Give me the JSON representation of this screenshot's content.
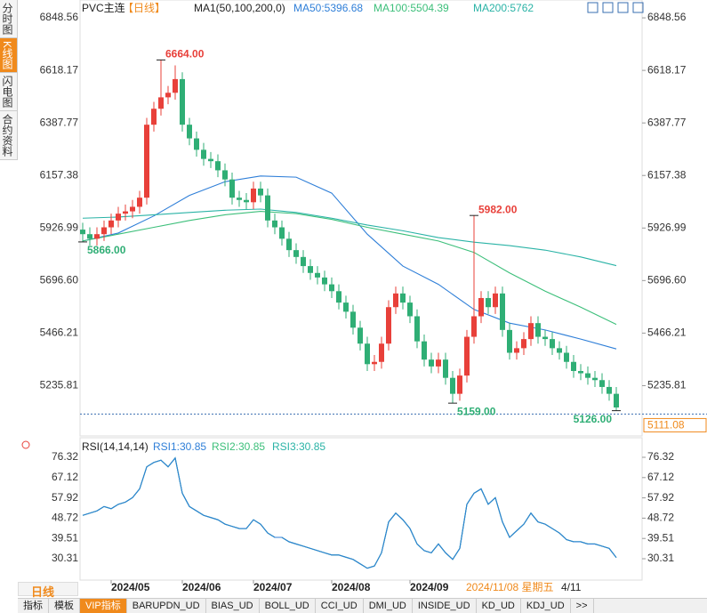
{
  "sidebar_tabs": [
    "分时图",
    "K线图",
    "闪电图",
    "合约资料"
  ],
  "chart_data": [
    {
      "type": "candlestick",
      "title": "PVC主连",
      "period": "【日线】",
      "indicator": "MA1(50,100,200,0)",
      "up_color": "#e8403a",
      "down_color": "#2fae75",
      "open": [
        5920,
        5900,
        5880,
        5900,
        5930,
        5960,
        5990,
        6000,
        6020,
        6060,
        6380,
        6450,
        6500,
        6520,
        6580,
        6380,
        6320,
        6270,
        6230,
        6220,
        6180,
        6140,
        6060,
        6050,
        6040,
        6100,
        6070,
        5960,
        5930,
        5880,
        5830,
        5800,
        5760,
        5730,
        5710,
        5680,
        5650,
        5600,
        5560,
        5490,
        5420,
        5330,
        5340,
        5420,
        5580,
        5640,
        5600,
        5540,
        5430,
        5350,
        5320,
        5350,
        5270,
        5200,
        5280,
        5450,
        5540,
        5620,
        5580,
        5640,
        5480,
        5380,
        5400,
        5440,
        5510,
        5450,
        5440,
        5400,
        5380,
        5340,
        5300,
        5290,
        5270,
        5260,
        5230,
        5200
      ],
      "high": [
        5950,
        5930,
        5930,
        5960,
        5990,
        6020,
        6030,
        6050,
        6090,
        6410,
        6480,
        6664,
        6550,
        6640,
        6610,
        6410,
        6350,
        6300,
        6260,
        6250,
        6210,
        6170,
        6090,
        6080,
        6130,
        6130,
        6100,
        5990,
        5960,
        5910,
        5860,
        5830,
        5790,
        5760,
        5740,
        5710,
        5680,
        5630,
        5590,
        5520,
        5450,
        5370,
        5450,
        5610,
        5670,
        5670,
        5630,
        5570,
        5460,
        5380,
        5380,
        5380,
        5300,
        5310,
        5480,
        5982,
        5650,
        5650,
        5670,
        5670,
        5510,
        5430,
        5470,
        5540,
        5540,
        5480,
        5470,
        5430,
        5410,
        5370,
        5330,
        5320,
        5300,
        5290,
        5260,
        5230
      ],
      "low": [
        5866,
        5850,
        5850,
        5870,
        5900,
        5930,
        5960,
        5970,
        5990,
        6030,
        6350,
        6420,
        6470,
        6490,
        6350,
        6290,
        6240,
        6200,
        6190,
        6150,
        6110,
        6030,
        6020,
        6010,
        6010,
        6040,
        5930,
        5900,
        5850,
        5800,
        5770,
        5730,
        5700,
        5680,
        5650,
        5620,
        5570,
        5530,
        5460,
        5390,
        5300,
        5300,
        5310,
        5390,
        5550,
        5570,
        5510,
        5400,
        5320,
        5290,
        5290,
        5240,
        5159,
        5170,
        5250,
        5420,
        5510,
        5550,
        5550,
        5450,
        5350,
        5350,
        5370,
        5410,
        5420,
        5410,
        5370,
        5350,
        5310,
        5270,
        5260,
        5240,
        5230,
        5200,
        5170,
        5126
      ],
      "close": [
        5900,
        5880,
        5900,
        5930,
        5960,
        5990,
        6000,
        6020,
        6060,
        6380,
        6450,
        6500,
        6520,
        6580,
        6380,
        6320,
        6270,
        6230,
        6220,
        6180,
        6140,
        6060,
        6050,
        6040,
        6100,
        6070,
        5960,
        5930,
        5880,
        5830,
        5800,
        5760,
        5730,
        5710,
        5680,
        5650,
        5600,
        5560,
        5490,
        5420,
        5330,
        5340,
        5420,
        5580,
        5640,
        5600,
        5540,
        5430,
        5350,
        5320,
        5350,
        5270,
        5200,
        5280,
        5450,
        5540,
        5620,
        5580,
        5640,
        5480,
        5380,
        5400,
        5440,
        5510,
        5450,
        5440,
        5400,
        5380,
        5340,
        5300,
        5290,
        5270,
        5260,
        5230,
        5200,
        5140
      ],
      "series": [
        {
          "name": "MA50:5396.68",
          "color": "#2f7fd8",
          "x": [
            0,
            5,
            10,
            15,
            20,
            25,
            30,
            35,
            40,
            45,
            50,
            55,
            60,
            65,
            70,
            75
          ],
          "values": [
            5870,
            5905,
            5980,
            6070,
            6130,
            6155,
            6150,
            6080,
            5900,
            5760,
            5680,
            5570,
            5510,
            5480,
            5440,
            5396.68
          ]
        },
        {
          "name": "MA100:5504.39",
          "color": "#3cbf7a",
          "x": [
            0,
            5,
            10,
            15,
            20,
            25,
            30,
            35,
            40,
            45,
            50,
            55,
            60,
            65,
            70,
            75
          ],
          "values": [
            5870,
            5900,
            5930,
            5960,
            5985,
            6000,
            5990,
            5965,
            5930,
            5900,
            5870,
            5820,
            5730,
            5650,
            5580,
            5504.39
          ]
        },
        {
          "name": "MA200:5762",
          "color": "#2ab3a6",
          "x": [
            0,
            5,
            10,
            15,
            20,
            25,
            30,
            35,
            40,
            45,
            50,
            55,
            60,
            65,
            70,
            75
          ],
          "values": [
            5970,
            5975,
            5985,
            5995,
            6005,
            6010,
            5995,
            5970,
            5940,
            5915,
            5885,
            5865,
            5850,
            5830,
            5800,
            5762
          ]
        }
      ],
      "annotations": [
        {
          "index": 11,
          "value": 6664,
          "label": "6664.00"
        },
        {
          "index": 0,
          "value": 5866,
          "label": "5866.00"
        },
        {
          "index": 55,
          "value": 5982,
          "label": "5982.00"
        },
        {
          "index": 52,
          "value": 5159,
          "label": "5159.00"
        },
        {
          "index": 75,
          "value": 5126,
          "label": "5126.00"
        }
      ],
      "last_price": {
        "value": 5111.08,
        "label": "5111.08"
      },
      "ylim": [
        5023,
        6880
      ],
      "yticks": [
        5235.81,
        5466.21,
        {
          "value": 5696.6,
          "label": "5696.60"
        },
        5926.99,
        6157.38,
        6387.77,
        6618.17,
        6848.56
      ],
      "xticks": [
        {
          "value": 4,
          "label": "2024/05"
        },
        {
          "value": 14,
          "label": "2024/06"
        },
        {
          "value": 24,
          "label": "2024/07"
        },
        {
          "value": 35,
          "label": "2024/08"
        },
        {
          "value": 46,
          "label": "2024/09"
        }
      ],
      "cursor_label": "2024/11/08 星期五",
      "cursor_extra": "4/11"
    },
    {
      "type": "line",
      "title": "RSI(14,14,14)",
      "series": [
        {
          "name": "RSI1:30.85",
          "color": "#2f7fd8",
          "values": [
            50,
            51,
            52,
            54,
            53,
            55,
            56,
            58,
            62,
            72,
            74,
            75,
            72,
            76,
            60,
            54,
            52,
            50,
            49,
            48,
            46,
            45,
            44,
            44,
            48,
            46,
            42,
            40,
            40,
            38,
            37,
            36,
            35,
            34,
            33,
            32,
            32,
            31,
            30,
            28,
            26,
            27,
            33,
            47,
            51,
            48,
            44,
            37,
            34,
            33,
            37,
            33,
            30,
            35,
            55,
            60,
            62,
            55,
            58,
            47,
            40,
            43,
            46,
            51,
            47,
            46,
            44,
            42,
            39,
            38,
            38,
            37,
            37,
            36,
            35,
            30.85
          ]
        },
        {
          "name": "RSI2:30.85",
          "color": "#3cbf7a",
          "values": [
            50,
            51,
            52,
            54,
            53,
            55,
            56,
            58,
            62,
            72,
            74,
            75,
            72,
            76,
            60,
            54,
            52,
            50,
            49,
            48,
            46,
            45,
            44,
            44,
            48,
            46,
            42,
            40,
            40,
            38,
            37,
            36,
            35,
            34,
            33,
            32,
            32,
            31,
            30,
            28,
            26,
            27,
            33,
            47,
            51,
            48,
            44,
            37,
            34,
            33,
            37,
            33,
            30,
            35,
            55,
            60,
            62,
            55,
            58,
            47,
            40,
            43,
            46,
            51,
            47,
            46,
            44,
            42,
            39,
            38,
            38,
            37,
            37,
            36,
            35,
            30.85
          ]
        },
        {
          "name": "RSI3:30.85",
          "color": "#2ab3a6",
          "values": [
            50,
            51,
            52,
            54,
            53,
            55,
            56,
            58,
            62,
            72,
            74,
            75,
            72,
            76,
            60,
            54,
            52,
            50,
            49,
            48,
            46,
            45,
            44,
            44,
            48,
            46,
            42,
            40,
            40,
            38,
            37,
            36,
            35,
            34,
            33,
            32,
            32,
            31,
            30,
            28,
            26,
            27,
            33,
            47,
            51,
            48,
            44,
            37,
            34,
            33,
            37,
            33,
            30,
            35,
            55,
            60,
            62,
            55,
            58,
            47,
            40,
            43,
            46,
            51,
            47,
            46,
            44,
            42,
            39,
            38,
            38,
            37,
            37,
            36,
            35,
            30.85
          ]
        }
      ],
      "ylim": [
        22.24,
        81.97
      ],
      "yticks": [
        30.31,
        39.51,
        48.72,
        57.92,
        67.12,
        76.32
      ]
    }
  ],
  "period_button": "日线",
  "toolbar_tabs": [
    "指标",
    "模板",
    "VIP指标",
    "BARUPDN_UD",
    "BIAS_UD",
    "BOLL_UD",
    "CCI_UD",
    "DMI_UD",
    "INSIDE_UD",
    "KD_UD",
    "KDJ_UD",
    ">>"
  ]
}
